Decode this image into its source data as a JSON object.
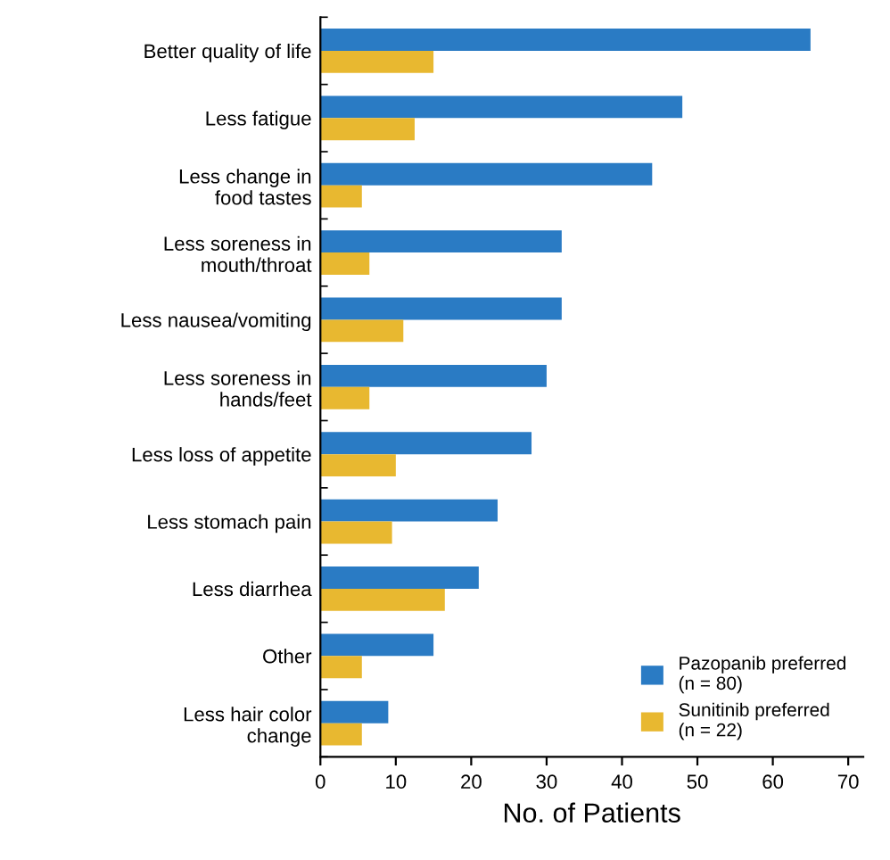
{
  "chart_data": {
    "type": "bar",
    "orientation": "horizontal",
    "xlabel": "No. of Patients",
    "categories": [
      "Better quality of life",
      "Less fatigue",
      "Less change in\nfood tastes",
      "Less soreness in\nmouth/throat",
      "Less nausea/vomiting",
      "Less soreness in\nhands/feet",
      "Less loss of appetite",
      "Less stomach pain",
      "Less diarrhea",
      "Other",
      "Less hair color\nchange"
    ],
    "series": [
      {
        "name": "Pazopanib preferred\n(n = 80)",
        "color": "#2a7bc4",
        "values": [
          65,
          48,
          44,
          32,
          32,
          30,
          28,
          23.5,
          21,
          15,
          9
        ]
      },
      {
        "name": "Sunitinib preferred\n(n = 22)",
        "color": "#e8b830",
        "values": [
          15,
          12.5,
          5.5,
          6.5,
          11,
          6.5,
          10,
          9.5,
          16.5,
          5.5,
          5.5
        ]
      }
    ],
    "xlim": [
      0,
      72
    ],
    "xticks": [
      0,
      10,
      20,
      30,
      40,
      50,
      60,
      70
    ],
    "legend": "bottom right",
    "grid": false
  }
}
